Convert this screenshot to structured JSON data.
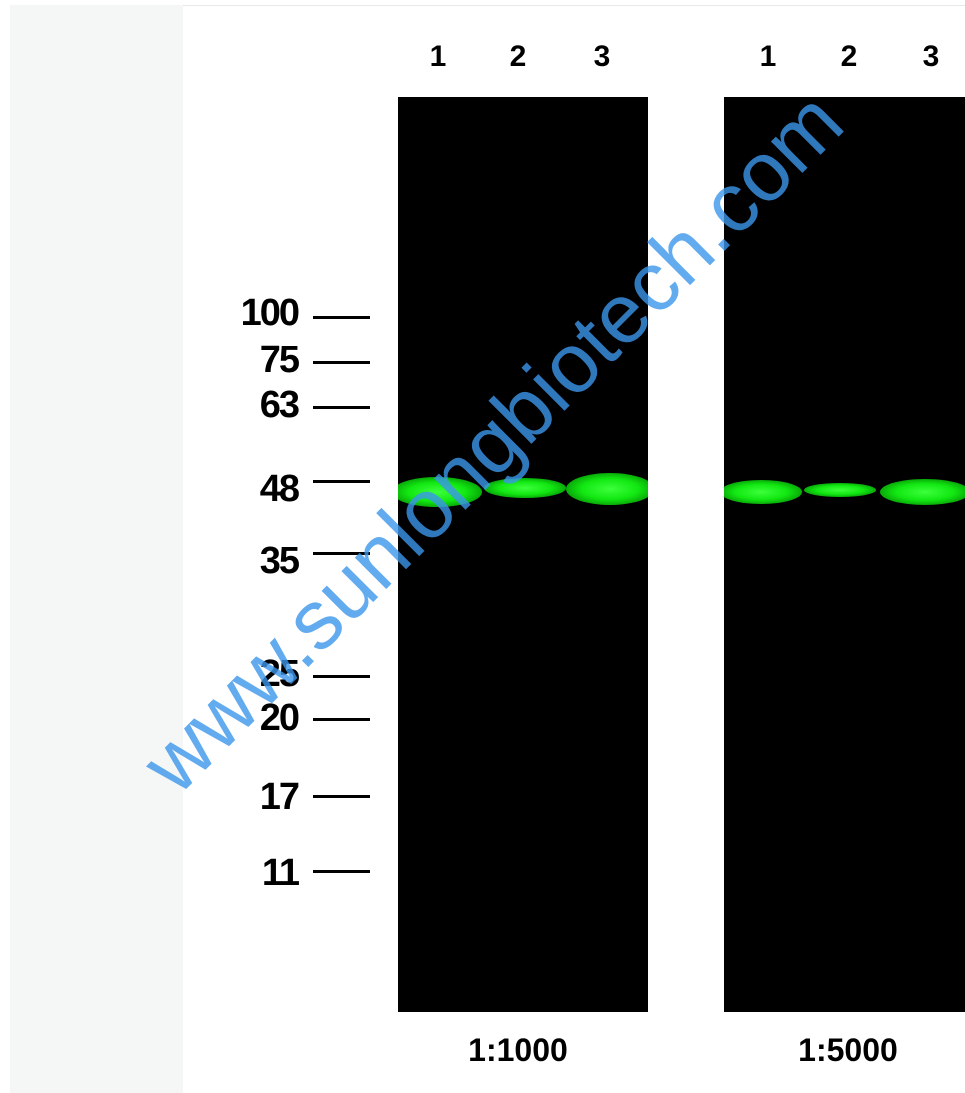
{
  "lanes_left": [
    "1",
    "2",
    "3"
  ],
  "lanes_right": [
    "1",
    "2",
    "3"
  ],
  "markers": [
    "100",
    "75",
    "63",
    "48",
    "35",
    "25",
    "20",
    "17",
    "11"
  ],
  "dilutions": {
    "left": "1:1000",
    "right": "1:5000"
  },
  "band_color": "#1ee61e",
  "blot_background": "#000000",
  "watermark": "www.sunlongbiotech.com"
}
